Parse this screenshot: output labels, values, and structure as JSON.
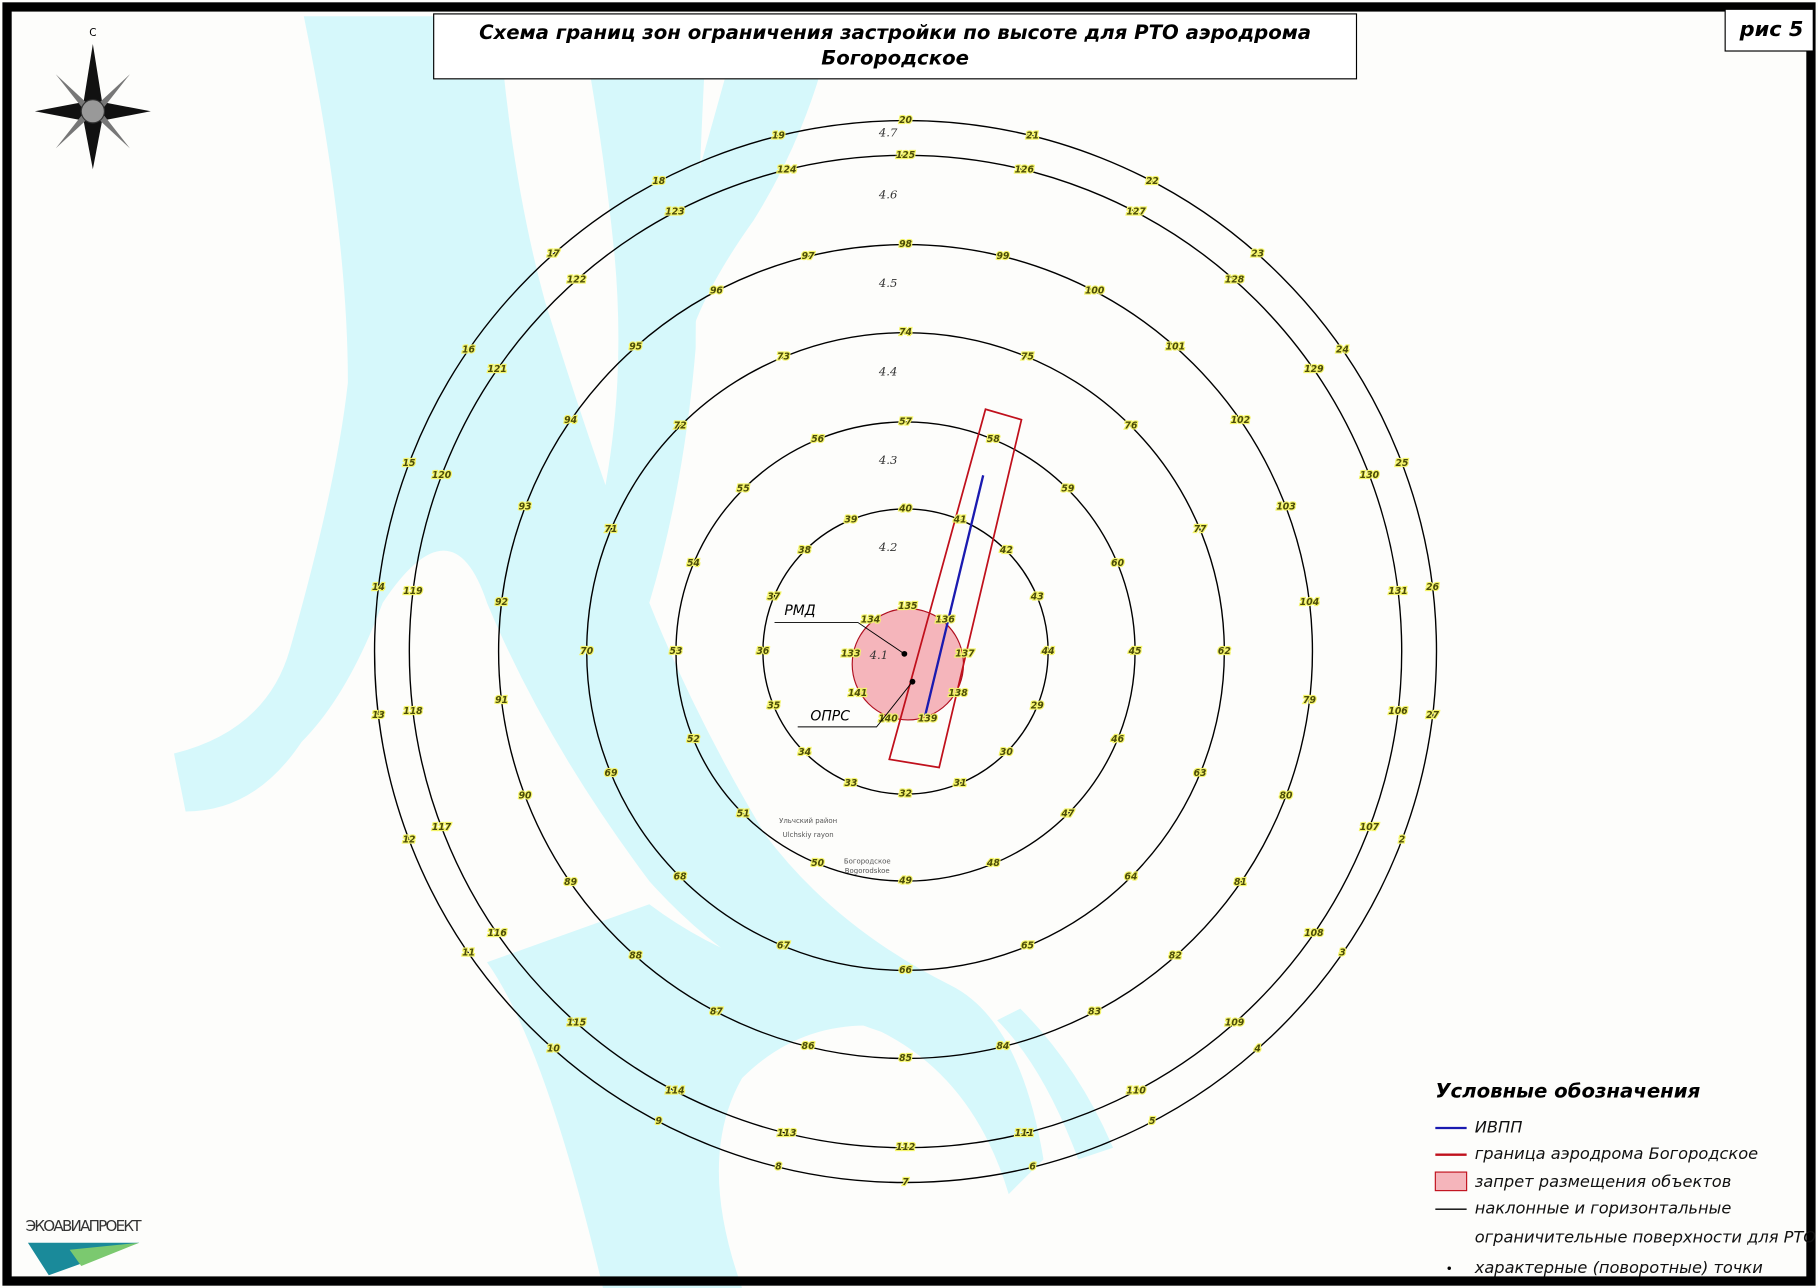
{
  "header": {
    "title_line1": "Схема границ зон ограничения застройки по высоте для РТО аэродрома",
    "title_line2": "Богородское",
    "figure": "рис 5"
  },
  "compass": {
    "north": "С"
  },
  "map": {
    "zones": [
      "4.1",
      "4.2",
      "4.3",
      "4.4",
      "4.5",
      "4.6",
      "4.7"
    ],
    "inner_points": [
      135,
      136,
      137,
      138,
      139,
      140,
      141,
      133,
      134
    ],
    "rings": [
      [
        32,
        33,
        34,
        35,
        36,
        37,
        38,
        39,
        40,
        41,
        42,
        43,
        44,
        29,
        30,
        31
      ],
      [
        49,
        50,
        51,
        52,
        53,
        54,
        55,
        56,
        57,
        58,
        59,
        60,
        45,
        46,
        47,
        48
      ],
      [
        66,
        67,
        68,
        69,
        70,
        71,
        72,
        73,
        74,
        75,
        76,
        77,
        62,
        63,
        64,
        65
      ],
      [
        85,
        86,
        87,
        88,
        89,
        90,
        91,
        92,
        93,
        94,
        95,
        96,
        97,
        98,
        99,
        100,
        101,
        102,
        103,
        104,
        79,
        80,
        81,
        82,
        83,
        84
      ],
      [
        112,
        113,
        114,
        115,
        116,
        117,
        118,
        119,
        120,
        121,
        122,
        123,
        124,
        125,
        126,
        127,
        128,
        129,
        130,
        131,
        106,
        107,
        108,
        109,
        110,
        111
      ],
      [
        7,
        8,
        9,
        10,
        11,
        12,
        13,
        14,
        15,
        16,
        17,
        18,
        19,
        20,
        21,
        22,
        23,
        24,
        25,
        26,
        27,
        2,
        3,
        4,
        5,
        6
      ]
    ],
    "markers": [
      "РМД",
      "ОПРС"
    ],
    "places": [
      "Ульчский район",
      "Ulchskiy rayon",
      "Богородское",
      "Bogorodskoe"
    ]
  },
  "legend": {
    "title": "Условные обозначения",
    "items": [
      "ИВПП",
      "граница аэродрома Богородское",
      "запрет размещения объектов",
      "наклонные и горизонтальные",
      "ограничительные поверхности для РТО",
      "характерные (поворотные) точки"
    ]
  },
  "logo": "ЭКОАВИАПРОЕКТ"
}
